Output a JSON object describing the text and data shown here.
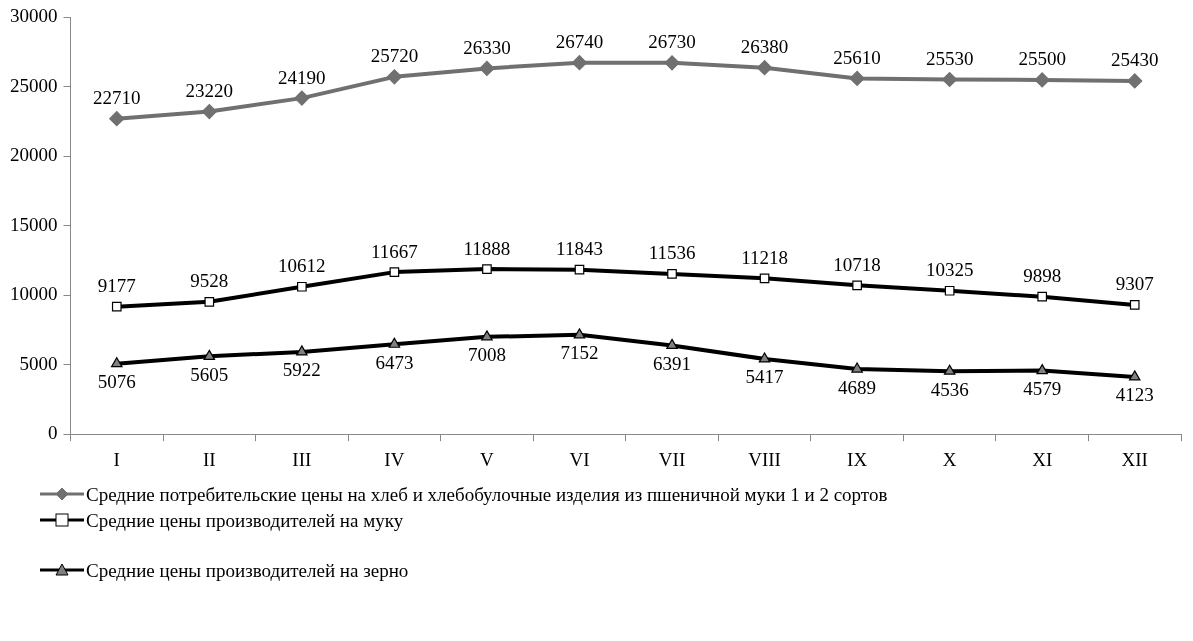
{
  "chart_data": {
    "type": "line",
    "categories": [
      "I",
      "II",
      "III",
      "IV",
      "V",
      "VI",
      "VII",
      "VIII",
      "IX",
      "X",
      "XI",
      "XII"
    ],
    "series": [
      {
        "name": "Средние потребительские цены на хлеб и хлебобулочные изделия из пшеничной муки  1 и 2 сортов",
        "color": "#707070",
        "marker": "diamond",
        "values": [
          22710,
          23220,
          24190,
          25720,
          26330,
          26740,
          26730,
          26380,
          25610,
          25530,
          25500,
          25430
        ]
      },
      {
        "name": "Средние цены производителей на муку",
        "color": "#000000",
        "marker": "square",
        "values": [
          9177,
          9528,
          10612,
          11667,
          11888,
          11843,
          11536,
          11218,
          10718,
          10325,
          9898,
          9307
        ]
      },
      {
        "name": "Средние цены производителей на зерно",
        "color": "#000000",
        "marker": "triangle",
        "values": [
          5076,
          5605,
          5922,
          6473,
          7008,
          7152,
          6391,
          5417,
          4689,
          4536,
          4579,
          4123
        ]
      }
    ],
    "ylim": [
      0,
      30000
    ],
    "yticks": [
      0,
      5000,
      10000,
      15000,
      20000,
      25000,
      30000
    ],
    "grid": false,
    "legend": "bottom",
    "data_labels": true
  }
}
